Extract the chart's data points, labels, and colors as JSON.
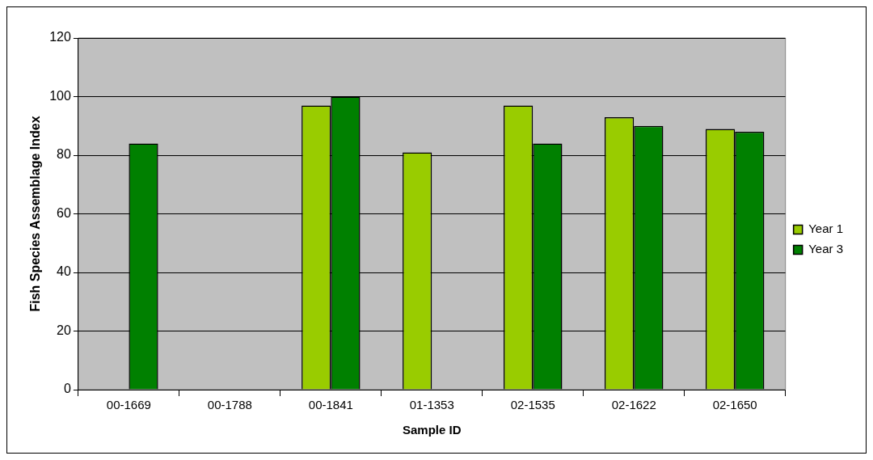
{
  "chart_data": {
    "type": "bar",
    "xlabel": "Sample ID",
    "ylabel": "Fish Species Assemblage Index",
    "categories": [
      "00-1669",
      "00-1788",
      "00-1841",
      "01-1353",
      "02-1535",
      "02-1622",
      "02-1650"
    ],
    "series": [
      {
        "name": "Year 1",
        "color": "#99cc00",
        "values": [
          null,
          null,
          97,
          81,
          97,
          93,
          89
        ]
      },
      {
        "name": "Year 3",
        "color": "#008000",
        "values": [
          84,
          null,
          100,
          null,
          84,
          90,
          88
        ]
      }
    ],
    "ylim": [
      0,
      120
    ],
    "yticks": [
      0,
      20,
      40,
      60,
      80,
      100,
      120
    ],
    "grid": "y",
    "legend": "right"
  }
}
